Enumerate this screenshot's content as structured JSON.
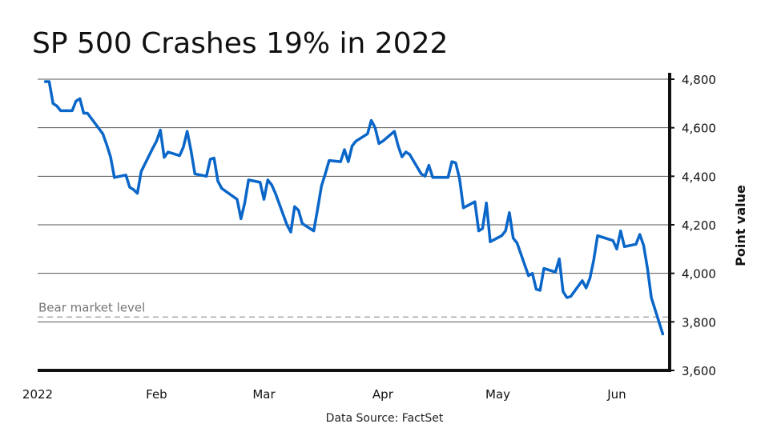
{
  "chart_data": {
    "type": "line",
    "title": "SP 500 Crashes 19% in 2022",
    "ylabel": "Point value",
    "source": "Data Source: FactSet",
    "ylim": [
      3600,
      4800
    ],
    "y_ticks": [
      {
        "value": 4800,
        "label": "4,800"
      },
      {
        "value": 4600,
        "label": "4,600"
      },
      {
        "value": 4400,
        "label": "4,400"
      },
      {
        "value": 4200,
        "label": "4,200"
      },
      {
        "value": 4000,
        "label": "4,000"
      },
      {
        "value": 3800,
        "label": "3,800"
      },
      {
        "value": 3600,
        "label": "3,600"
      }
    ],
    "x_ticks": [
      {
        "date": "2022-01-01",
        "label": "2022"
      },
      {
        "date": "2022-02-01",
        "label": "Feb"
      },
      {
        "date": "2022-03-01",
        "label": "Mar"
      },
      {
        "date": "2022-04-01",
        "label": "Apr"
      },
      {
        "date": "2022-05-01",
        "label": "May"
      },
      {
        "date": "2022-06-01",
        "label": "Jun"
      }
    ],
    "grid": true,
    "annotations": [
      {
        "text": "Bear market level",
        "y": 3820,
        "style": "dashed",
        "color": "#999999"
      }
    ],
    "line_color": "#0a66c8",
    "series": [
      {
        "points": [
          [
            "2022-01-03",
            4790
          ],
          [
            "2022-01-04",
            4790
          ],
          [
            "2022-01-05",
            4700
          ],
          [
            "2022-01-06",
            4690
          ],
          [
            "2022-01-07",
            4670
          ],
          [
            "2022-01-10",
            4670
          ],
          [
            "2022-01-11",
            4710
          ],
          [
            "2022-01-12",
            4720
          ],
          [
            "2022-01-13",
            4660
          ],
          [
            "2022-01-14",
            4660
          ],
          [
            "2022-01-18",
            4575
          ],
          [
            "2022-01-19",
            4530
          ],
          [
            "2022-01-20",
            4480
          ],
          [
            "2022-01-21",
            4395
          ],
          [
            "2022-01-24",
            4405
          ],
          [
            "2022-01-25",
            4355
          ],
          [
            "2022-01-26",
            4345
          ],
          [
            "2022-01-27",
            4330
          ],
          [
            "2022-01-28",
            4420
          ],
          [
            "2022-01-31",
            4515
          ],
          [
            "2022-02-01",
            4545
          ],
          [
            "2022-02-02",
            4590
          ],
          [
            "2022-02-03",
            4478
          ],
          [
            "2022-02-04",
            4500
          ],
          [
            "2022-02-07",
            4485
          ],
          [
            "2022-02-08",
            4520
          ],
          [
            "2022-02-09",
            4585
          ],
          [
            "2022-02-10",
            4505
          ],
          [
            "2022-02-11",
            4410
          ],
          [
            "2022-02-14",
            4400
          ],
          [
            "2022-02-15",
            4470
          ],
          [
            "2022-02-16",
            4475
          ],
          [
            "2022-02-17",
            4380
          ],
          [
            "2022-02-18",
            4350
          ],
          [
            "2022-02-22",
            4305
          ],
          [
            "2022-02-23",
            4225
          ],
          [
            "2022-02-24",
            4290
          ],
          [
            "2022-02-25",
            4385
          ],
          [
            "2022-02-28",
            4375
          ],
          [
            "2022-03-01",
            4305
          ],
          [
            "2022-03-02",
            4385
          ],
          [
            "2022-03-03",
            4365
          ],
          [
            "2022-03-04",
            4330
          ],
          [
            "2022-03-07",
            4200
          ],
          [
            "2022-03-08",
            4170
          ],
          [
            "2022-03-09",
            4275
          ],
          [
            "2022-03-10",
            4260
          ],
          [
            "2022-03-11",
            4205
          ],
          [
            "2022-03-14",
            4175
          ],
          [
            "2022-03-15",
            4265
          ],
          [
            "2022-03-16",
            4360
          ],
          [
            "2022-03-17",
            4410
          ],
          [
            "2022-03-18",
            4465
          ],
          [
            "2022-03-21",
            4460
          ],
          [
            "2022-03-22",
            4510
          ],
          [
            "2022-03-23",
            4460
          ],
          [
            "2022-03-24",
            4525
          ],
          [
            "2022-03-25",
            4545
          ],
          [
            "2022-03-28",
            4575
          ],
          [
            "2022-03-29",
            4630
          ],
          [
            "2022-03-30",
            4600
          ],
          [
            "2022-03-31",
            4535
          ],
          [
            "2022-04-01",
            4545
          ],
          [
            "2022-04-04",
            4585
          ],
          [
            "2022-04-05",
            4525
          ],
          [
            "2022-04-06",
            4480
          ],
          [
            "2022-04-07",
            4500
          ],
          [
            "2022-04-08",
            4490
          ],
          [
            "2022-04-11",
            4410
          ],
          [
            "2022-04-12",
            4400
          ],
          [
            "2022-04-13",
            4445
          ],
          [
            "2022-04-14",
            4395
          ],
          [
            "2022-04-18",
            4395
          ],
          [
            "2022-04-19",
            4460
          ],
          [
            "2022-04-20",
            4455
          ],
          [
            "2022-04-21",
            4390
          ],
          [
            "2022-04-22",
            4270
          ],
          [
            "2022-04-25",
            4295
          ],
          [
            "2022-04-26",
            4175
          ],
          [
            "2022-04-27",
            4185
          ],
          [
            "2022-04-28",
            4290
          ],
          [
            "2022-04-29",
            4130
          ],
          [
            "2022-05-02",
            4155
          ],
          [
            "2022-05-03",
            4175
          ],
          [
            "2022-05-04",
            4250
          ],
          [
            "2022-05-05",
            4145
          ],
          [
            "2022-05-06",
            4125
          ],
          [
            "2022-05-09",
            3990
          ],
          [
            "2022-05-10",
            4000
          ],
          [
            "2022-05-11",
            3935
          ],
          [
            "2022-05-12",
            3930
          ],
          [
            "2022-05-13",
            4020
          ],
          [
            "2022-05-16",
            4005
          ],
          [
            "2022-05-17",
            4060
          ],
          [
            "2022-05-18",
            3925
          ],
          [
            "2022-05-19",
            3900
          ],
          [
            "2022-05-20",
            3905
          ],
          [
            "2022-05-23",
            3970
          ],
          [
            "2022-05-24",
            3940
          ],
          [
            "2022-05-25",
            3980
          ],
          [
            "2022-05-26",
            4055
          ],
          [
            "2022-05-27",
            4155
          ],
          [
            "2022-05-31",
            4135
          ],
          [
            "2022-06-01",
            4100
          ],
          [
            "2022-06-02",
            4175
          ],
          [
            "2022-06-03",
            4110
          ],
          [
            "2022-06-06",
            4120
          ],
          [
            "2022-06-07",
            4160
          ],
          [
            "2022-06-08",
            4115
          ],
          [
            "2022-06-09",
            4020
          ],
          [
            "2022-06-10",
            3900
          ],
          [
            "2022-06-13",
            3750
          ]
        ]
      }
    ]
  }
}
